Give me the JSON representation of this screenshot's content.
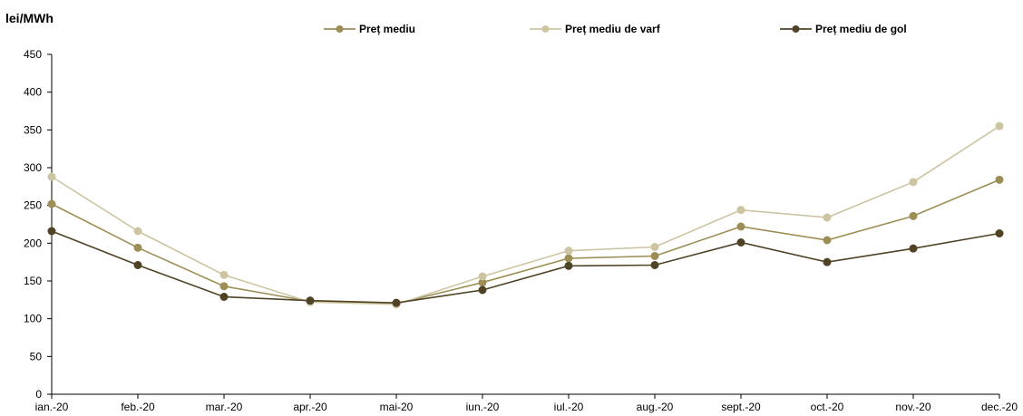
{
  "chart_data": {
    "type": "line",
    "ylabel": "lei/MWh",
    "ylim": [
      0,
      450
    ],
    "yticks": [
      0,
      50,
      100,
      150,
      200,
      250,
      300,
      350,
      400,
      450
    ],
    "grid": false,
    "legend_position": "top",
    "categories": [
      "ian.-20",
      "feb.-20",
      "mar.-20",
      "apr.-20",
      "mai-20",
      "iun.-20",
      "iul.-20",
      "aug.-20",
      "sept.-20",
      "oct.-20",
      "nov.-20",
      "dec.-20"
    ],
    "series": [
      {
        "name": "Preț mediu",
        "color": "#9c8e55",
        "values": [
          252,
          194,
          143,
          123,
          120,
          148,
          180,
          183,
          222,
          204,
          236,
          284
        ]
      },
      {
        "name": "Preț mediu de varf",
        "color": "#cdc5a2",
        "values": [
          288,
          216,
          158,
          122,
          119,
          156,
          190,
          195,
          244,
          234,
          281,
          355
        ]
      },
      {
        "name": "Preț mediu de gol",
        "color": "#4f4325",
        "values": [
          216,
          171,
          129,
          124,
          121,
          138,
          170,
          171,
          201,
          175,
          193,
          213
        ]
      }
    ]
  }
}
